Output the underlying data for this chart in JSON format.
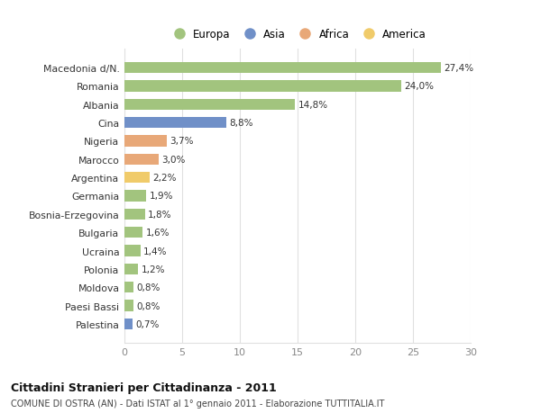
{
  "categories": [
    "Macedonia d/N.",
    "Romania",
    "Albania",
    "Cina",
    "Nigeria",
    "Marocco",
    "Argentina",
    "Germania",
    "Bosnia-Erzegovina",
    "Bulgaria",
    "Ucraina",
    "Polonia",
    "Moldova",
    "Paesi Bassi",
    "Palestina"
  ],
  "values": [
    27.4,
    24.0,
    14.8,
    8.8,
    3.7,
    3.0,
    2.2,
    1.9,
    1.8,
    1.6,
    1.4,
    1.2,
    0.8,
    0.8,
    0.7
  ],
  "labels": [
    "27,4%",
    "24,0%",
    "14,8%",
    "8,8%",
    "3,7%",
    "3,0%",
    "2,2%",
    "1,9%",
    "1,8%",
    "1,6%",
    "1,4%",
    "1,2%",
    "0,8%",
    "0,8%",
    "0,7%"
  ],
  "colors": [
    "#a2c47e",
    "#a2c47e",
    "#a2c47e",
    "#7090c8",
    "#e8a878",
    "#e8a878",
    "#f0cb6a",
    "#a2c47e",
    "#a2c47e",
    "#a2c47e",
    "#a2c47e",
    "#a2c47e",
    "#a2c47e",
    "#a2c47e",
    "#7090c8"
  ],
  "legend_labels": [
    "Europa",
    "Asia",
    "Africa",
    "America"
  ],
  "legend_colors": [
    "#a2c47e",
    "#7090c8",
    "#e8a878",
    "#f0cb6a"
  ],
  "title": "Cittadini Stranieri per Cittadinanza - 2011",
  "subtitle": "COMUNE DI OSTRA (AN) - Dati ISTAT al 1° gennaio 2011 - Elaborazione TUTTITALIA.IT",
  "xlim": [
    0,
    30
  ],
  "xticks": [
    0,
    5,
    10,
    15,
    20,
    25,
    30
  ],
  "background_color": "#ffffff",
  "grid_color": "#e0e0e0"
}
